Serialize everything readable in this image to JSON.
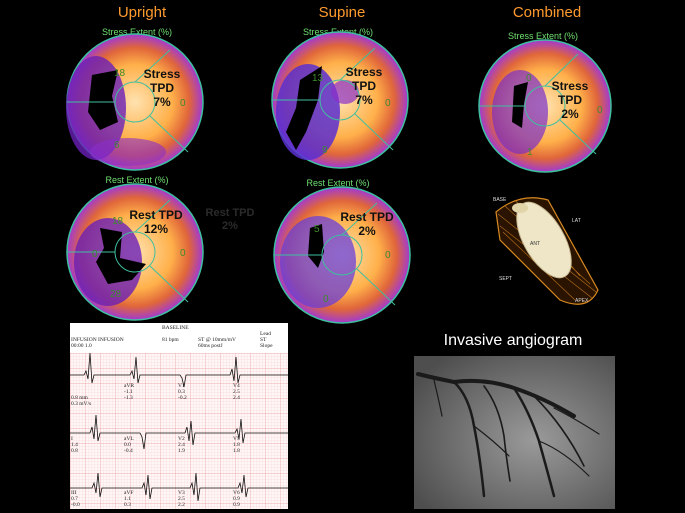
{
  "columns": {
    "upright": "Upright",
    "supine": "Supine",
    "combined": "Combined"
  },
  "labels": {
    "stress_extent": "Stress Extent (%)",
    "rest_extent": "Rest Extent (%)"
  },
  "polar_maps": {
    "upright_stress": {
      "title": "Stress TPD",
      "value": "7%",
      "segments": [
        "18",
        "0",
        "6"
      ]
    },
    "supine_stress": {
      "title": "Stress TPD",
      "value": "7%",
      "segments": [
        "13",
        "0",
        "9"
      ]
    },
    "combined_stress": {
      "title": "Stress TPD",
      "value": "2%",
      "segments": [
        "0",
        "0",
        "1"
      ]
    },
    "upright_rest": {
      "title": "Rest TPD",
      "value": "12%",
      "segments": [
        "18",
        "0",
        "0",
        "28"
      ]
    },
    "supine_rest": {
      "title": "Rest TPD",
      "value": "2%",
      "segments": [
        "5",
        "0",
        "0"
      ]
    }
  },
  "ghost_label": {
    "line1": "Rest TPD",
    "line2": "2%"
  },
  "lv_model": {
    "base": "BASE",
    "lat": "LAT",
    "ant": "ANT",
    "sept": "SEPT",
    "apex": "APEX"
  },
  "ecg": {
    "title": "BASELINE",
    "row1": "INFUSION INFUSION",
    "row1b": "00:00          1.0",
    "bpm": "81 bpm",
    "scale": "ST @ 10mm/mV",
    "scale2": "60ms postJ",
    "lead_hdr": "Lead",
    "st_hdr": "ST",
    "slope_hdr": "Slope",
    "leads": [
      {
        "name": "",
        "v1": "0.8 mm",
        "v2": "0.3 mV/s"
      },
      {
        "name": "aVR",
        "v1": "-1.1",
        "v2": "-1.3"
      },
      {
        "name": "V1",
        "v1": "0.3",
        "v2": "-0.2"
      },
      {
        "name": "V4",
        "v1": "2.5",
        "v2": "2.4"
      },
      {
        "name": "I",
        "v1": "1.4",
        "v2": "0.8"
      },
      {
        "name": "aVL",
        "v1": "0.0",
        "v2": "-0.4"
      },
      {
        "name": "V2",
        "v1": "2.4",
        "v2": "1.9"
      },
      {
        "name": "V5",
        "v1": "1.8",
        "v2": "1.8"
      },
      {
        "name": "III",
        "v1": "0.7",
        "v2": "-0.0"
      },
      {
        "name": "aVF",
        "v1": "1.1",
        "v2": "0.3"
      },
      {
        "name": "V3",
        "v1": "2.5",
        "v2": "2.2"
      },
      {
        "name": "V6",
        "v1": "0.9",
        "v2": "0.9"
      }
    ]
  },
  "angiogram": {
    "title": "Invasive angiogram"
  }
}
